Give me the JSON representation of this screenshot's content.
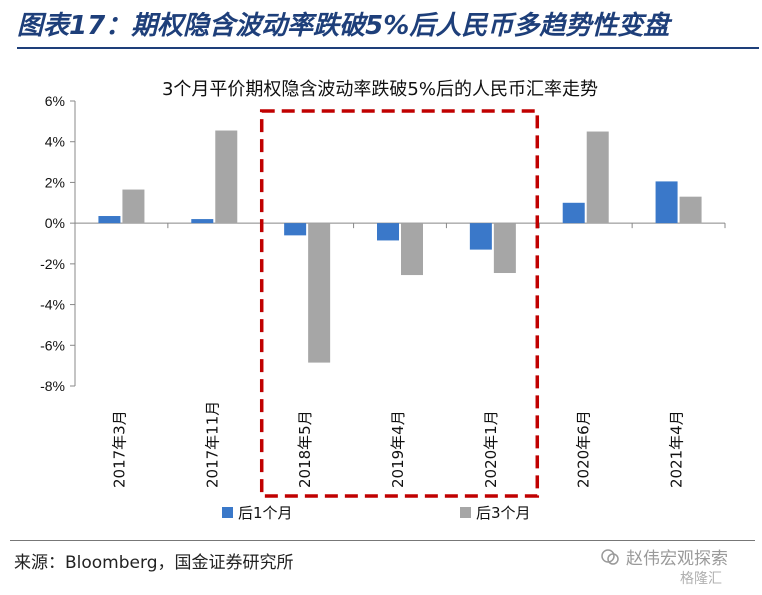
{
  "figure": {
    "title": "图表17：期权隐含波动率跌破5%后人民币多趋势性变盘",
    "source": "来源：Bloomberg，国金证券研究所",
    "watermark": "赵伟宏观探索",
    "watermark_sub": "格隆汇",
    "colors": {
      "title": "#1e3f7a",
      "highlight_box": "#c00000"
    }
  },
  "chart_data": {
    "type": "bar",
    "title": "3个月平价期权隐含波动率跌破5%后的人民币汇率走势",
    "categories": [
      "2017年3月",
      "2017年11月",
      "2018年5月",
      "2019年4月",
      "2020年1月",
      "2020年6月",
      "2021年4月"
    ],
    "series": [
      {
        "name": "后1个月",
        "color": "#3a78c9",
        "values": [
          0.35,
          0.2,
          -0.6,
          -0.85,
          -1.3,
          1.0,
          2.05
        ]
      },
      {
        "name": "后3个月",
        "color": "#a6a6a6",
        "values": [
          1.65,
          4.55,
          -6.85,
          -2.55,
          -2.45,
          4.5,
          1.3
        ]
      }
    ],
    "ylim": [
      -8,
      6
    ],
    "ytick_step": 2,
    "ytick_labels": [
      "6%",
      "4%",
      "2%",
      "0%",
      "-2%",
      "-4%",
      "-6%",
      "-8%"
    ],
    "xlabel": "",
    "ylabel": "",
    "legend_position": "bottom",
    "grid": false,
    "highlight": {
      "categories": [
        "2018年5月",
        "2019年4月",
        "2020年1月"
      ],
      "style": "dashed-box"
    }
  }
}
